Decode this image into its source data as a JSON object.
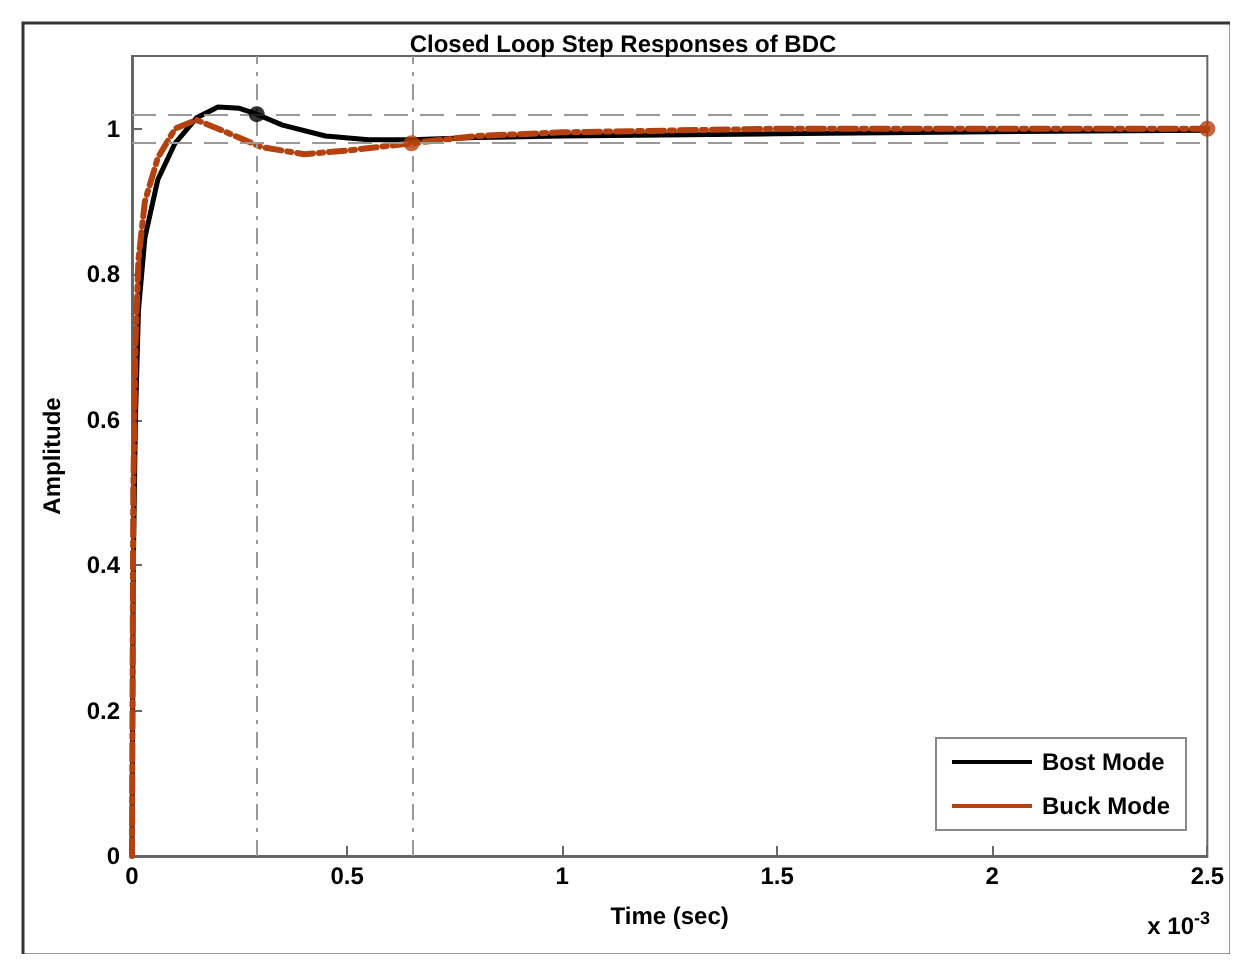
{
  "chart_data": {
    "type": "line",
    "title": "Closed Loop Step Responses of BDC",
    "xlabel": "Time (sec)",
    "ylabel": "Amplitude",
    "annotations": [
      "x 10$^{-3}$"
    ],
    "xlim": [
      0,
      2.5
    ],
    "xticks": [
      0,
      0.5,
      1,
      1.5,
      2,
      2.5
    ],
    "ylim": [
      0,
      1.1
    ],
    "yticks": [
      0,
      0.2,
      0.4,
      0.6,
      0.8,
      1
    ],
    "grid": false,
    "legend": "bottom right",
    "marker": "none",
    "ref_lines": [
      {
        "axis": "y",
        "value": 1.02,
        "color": "#999999",
        "line_style": "dashed"
      },
      {
        "axis": "y",
        "value": 0.98,
        "color": "#999999",
        "line_style": "dashed"
      },
      {
        "axis": "x",
        "value": 0.29,
        "color": "#999999",
        "line_style": "dashdot"
      },
      {
        "axis": "x",
        "value": 0.65,
        "color": "#999999",
        "line_style": "dashdot"
      }
    ],
    "series": [
      {
        "name": "Bost Mode",
        "color": "#000000",
        "line_style": "solid",
        "x": [
          0,
          0.003,
          0.008,
          0.015,
          0.03,
          0.06,
          0.1,
          0.15,
          0.2,
          0.25,
          0.29,
          0.35,
          0.45,
          0.55,
          0.65,
          0.8,
          1.0,
          1.5,
          2.0,
          2.5
        ],
        "values": [
          0,
          0.4,
          0.6,
          0.75,
          0.85,
          0.93,
          0.98,
          1.015,
          1.03,
          1.028,
          1.02,
          1.005,
          0.99,
          0.985,
          0.985,
          0.988,
          0.99,
          0.993,
          0.996,
          0.998
        ]
      },
      {
        "name": "Buck Mode",
        "color": "#b5410f",
        "line_style": "dashed",
        "x": [
          0,
          0.003,
          0.008,
          0.015,
          0.03,
          0.06,
          0.1,
          0.15,
          0.2,
          0.3,
          0.4,
          0.5,
          0.65,
          0.8,
          1.0,
          1.5,
          2.0,
          2.5
        ],
        "values": [
          0,
          0.5,
          0.7,
          0.82,
          0.9,
          0.96,
          1.0,
          1.012,
          1.0,
          0.975,
          0.965,
          0.97,
          0.98,
          0.99,
          0.995,
          1.0,
          1.0,
          1.0
        ]
      },
      {
        "type": "scatter",
        "marker": "circle",
        "color": "#000000",
        "x": [
          0.29
        ],
        "values": [
          1.02
        ]
      },
      {
        "type": "scatter",
        "marker": "circle",
        "color": "#b5410f",
        "x": [
          0.65,
          2.5
        ],
        "values": [
          0.98,
          1.0
        ]
      }
    ]
  }
}
